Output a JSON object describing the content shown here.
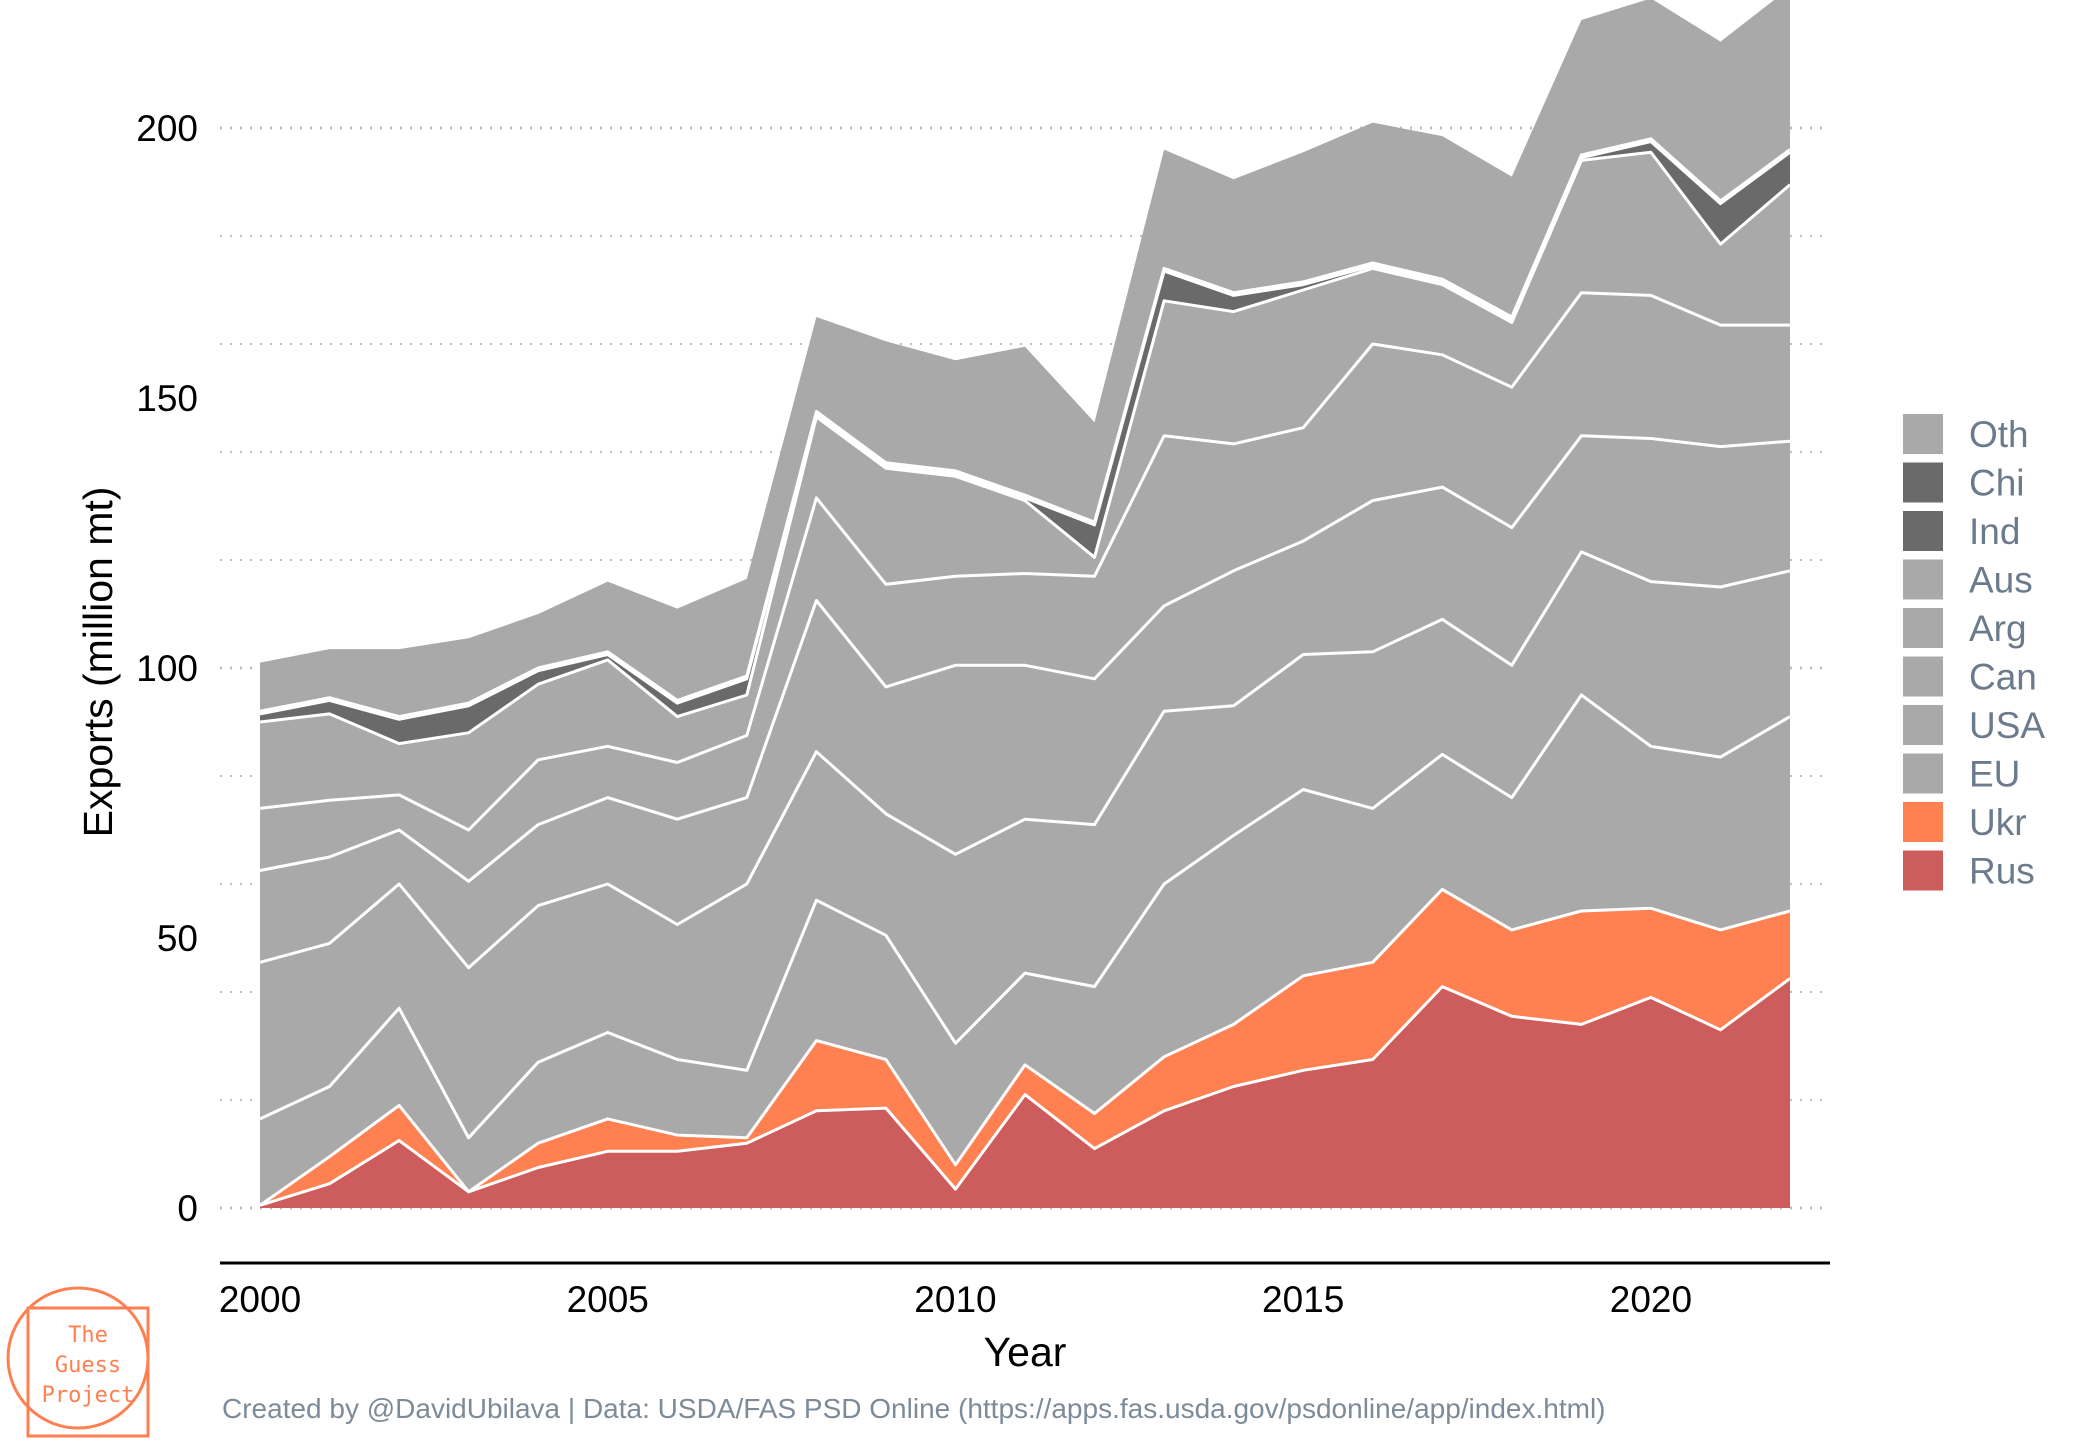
{
  "chart_data": {
    "type": "area",
    "stacked": true,
    "title": "",
    "xlabel": "Year",
    "ylabel": "Exports (million mt)",
    "xlim": [
      2000,
      2022
    ],
    "ylim": [
      0,
      210
    ],
    "x_ticks": [
      2000,
      2005,
      2010,
      2015,
      2020
    ],
    "y_ticks": [
      0,
      50,
      100,
      150,
      200
    ],
    "grid": true,
    "legend_position": "right",
    "x": [
      2000,
      2001,
      2002,
      2003,
      2004,
      2005,
      2006,
      2007,
      2008,
      2009,
      2010,
      2011,
      2012,
      2013,
      2014,
      2015,
      2016,
      2017,
      2018,
      2019,
      2020,
      2021,
      2022
    ],
    "series": [
      {
        "name": "Rus",
        "color": "#cd5c5c",
        "values": [
          0.5,
          4.5,
          12.5,
          3,
          7.5,
          10.5,
          10.5,
          12,
          18,
          18.5,
          3.5,
          21,
          11,
          18,
          22.5,
          25.5,
          27.5,
          41,
          35.5,
          34,
          39,
          33,
          42.5
        ]
      },
      {
        "name": "Ukr",
        "color": "#ff8050",
        "values": [
          0,
          5,
          6.5,
          0,
          4.5,
          6,
          3,
          1,
          13,
          9,
          4.5,
          5.5,
          6.5,
          10,
          11.5,
          17.5,
          18,
          18,
          16,
          21,
          16.5,
          18.5,
          12.5
        ]
      },
      {
        "name": "EU",
        "color": "#a9a9a9",
        "values": [
          16,
          13,
          18,
          10,
          15,
          16,
          14,
          12.5,
          26,
          23,
          22.5,
          17,
          23.5,
          32,
          35,
          34.5,
          28.5,
          25,
          24.5,
          40,
          30,
          32,
          36
        ]
      },
      {
        "name": "USA",
        "color": "#a9a9a9",
        "values": [
          29,
          26.5,
          23,
          31.5,
          29,
          27.5,
          25,
          34.5,
          27.5,
          22.5,
          35,
          28.5,
          30,
          32,
          24,
          25,
          29,
          25,
          24.5,
          26.5,
          30.5,
          31.5,
          27
        ]
      },
      {
        "name": "Can",
        "color": "#a9a9a9",
        "values": [
          17,
          16,
          10,
          16,
          15,
          16,
          19.5,
          16,
          28,
          23.5,
          35,
          28.5,
          27,
          19.5,
          25,
          21,
          28,
          24.5,
          25.5,
          21.5,
          26.5,
          26,
          24
        ]
      },
      {
        "name": "Arg",
        "color": "#a9a9a9",
        "values": [
          11.5,
          10.5,
          6.5,
          9.5,
          12,
          9.5,
          10.5,
          11.5,
          19,
          19,
          16.5,
          17,
          19,
          31.5,
          23.5,
          21,
          29,
          24.5,
          26,
          26.5,
          26.5,
          22.5,
          21.5
        ]
      },
      {
        "name": "Aus",
        "color": "#a9a9a9",
        "values": [
          16,
          16,
          9.5,
          18,
          14,
          16,
          8.5,
          7.5,
          15,
          21.5,
          18.5,
          13.5,
          3.5,
          25,
          24.5,
          25.5,
          14,
          13,
          12,
          24.5,
          26.5,
          15,
          26
        ]
      },
      {
        "name": "Ind",
        "color": "#6a6a6a",
        "values": [
          1.5,
          2.5,
          4.5,
          5,
          2.5,
          1,
          2.5,
          3,
          0.5,
          0.5,
          0.5,
          0.5,
          6,
          5.5,
          3,
          1,
          0.5,
          0.5,
          0.5,
          0.5,
          2,
          7.5,
          6
        ]
      },
      {
        "name": "Chi",
        "color": "#6a6a6a",
        "values": [
          0.5,
          0.5,
          0.5,
          0.5,
          0.5,
          0.5,
          0.5,
          0.5,
          0.5,
          0.5,
          0.5,
          0.5,
          0.5,
          0.5,
          0.5,
          0.5,
          0.5,
          0.5,
          0.5,
          0.5,
          0.5,
          0.5,
          0.5
        ]
      },
      {
        "name": "Oth",
        "color": "#a9a9a9",
        "values": [
          9,
          9,
          12.5,
          12,
          10,
          13,
          17,
          18,
          17.5,
          22.5,
          20.5,
          27.5,
          18.5,
          22,
          21,
          24,
          26,
          26.5,
          26,
          25,
          26,
          29.5,
          30
        ]
      }
    ]
  },
  "caption": "Created by @DavidUbilava | Data: USDA/FAS PSD Online (https://apps.fas.usda.gov/psdonline/app/index.html)",
  "logo": {
    "line1": "The",
    "line2": "Guess",
    "line3": "Project",
    "color": "#ff7f50"
  }
}
